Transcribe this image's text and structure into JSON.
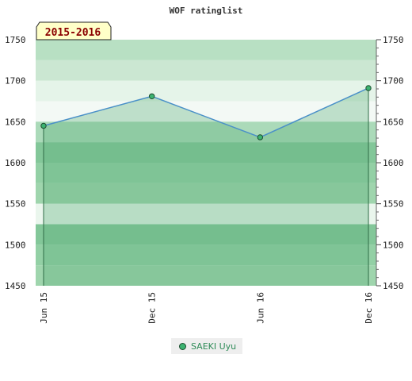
{
  "chart_data": {
    "type": "line",
    "title": "WOF ratinglist",
    "badge": "2015-2016",
    "x": [
      "Jun 15",
      "Dec 15",
      "Jun 16",
      "Dec 16"
    ],
    "series": [
      {
        "name": "SAEKI Uyu",
        "values": [
          1645,
          1681,
          1631,
          1691
        ]
      }
    ],
    "ylim": [
      1450,
      1750
    ],
    "yticks": [
      "1450",
      "1500",
      "1550",
      "1600",
      "1650",
      "1700",
      "1750"
    ],
    "grid": true,
    "legend_position": "bottom",
    "colors": {
      "line": "#4a90c8",
      "marker": "#3cb371",
      "area": "#5bb07a",
      "band_dark": "#7cc494",
      "band_light": "#b4dec0"
    }
  }
}
